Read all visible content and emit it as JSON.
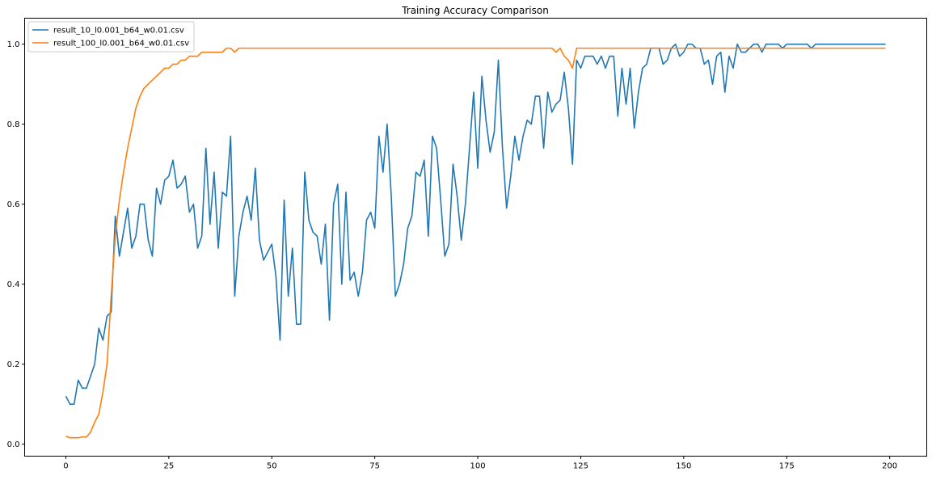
{
  "chart_data": {
    "type": "line",
    "title": "Training Accuracy Comparison",
    "xlabel": "",
    "ylabel": "",
    "xlim": [
      -10,
      209
    ],
    "ylim": [
      -0.03,
      1.065
    ],
    "grid": false,
    "legend_position": "top-left",
    "x_ticks": [
      0,
      25,
      50,
      75,
      100,
      125,
      150,
      175,
      200
    ],
    "x_tick_labels": [
      "0",
      "25",
      "50",
      "75",
      "100",
      "125",
      "150",
      "175",
      "200"
    ],
    "y_ticks": [
      0.0,
      0.2,
      0.4,
      0.6,
      0.8,
      1.0
    ],
    "y_tick_labels": [
      "0.0",
      "0.2",
      "0.4",
      "0.6",
      "0.8",
      "1.0"
    ],
    "series": [
      {
        "name": "result_10_l0.001_b64_w0.01.csv",
        "color": "#1f77b4",
        "x": [
          0,
          1,
          2,
          3,
          4,
          5,
          6,
          7,
          8,
          9,
          10,
          11,
          12,
          13,
          14,
          15,
          16,
          17,
          18,
          19,
          20,
          21,
          22,
          23,
          24,
          25,
          26,
          27,
          28,
          29,
          30,
          31,
          32,
          33,
          34,
          35,
          36,
          37,
          38,
          39,
          40,
          41,
          42,
          43,
          44,
          45,
          46,
          47,
          48,
          49,
          50,
          51,
          52,
          53,
          54,
          55,
          56,
          57,
          58,
          59,
          60,
          61,
          62,
          63,
          64,
          65,
          66,
          67,
          68,
          69,
          70,
          71,
          72,
          73,
          74,
          75,
          76,
          77,
          78,
          79,
          80,
          81,
          82,
          83,
          84,
          85,
          86,
          87,
          88,
          89,
          90,
          91,
          92,
          93,
          94,
          95,
          96,
          97,
          98,
          99,
          100,
          101,
          102,
          103,
          104,
          105,
          106,
          107,
          108,
          109,
          110,
          111,
          112,
          113,
          114,
          115,
          116,
          117,
          118,
          119,
          120,
          121,
          122,
          123,
          124,
          125,
          126,
          127,
          128,
          129,
          130,
          131,
          132,
          133,
          134,
          135,
          136,
          137,
          138,
          139,
          140,
          141,
          142,
          143,
          144,
          145,
          146,
          147,
          148,
          149,
          150,
          151,
          152,
          153,
          154,
          155,
          156,
          157,
          158,
          159,
          160,
          161,
          162,
          163,
          164,
          165,
          166,
          167,
          168,
          169,
          170,
          171,
          172,
          173,
          174,
          175,
          176,
          177,
          178,
          179,
          180,
          181,
          182,
          183,
          184,
          185,
          186,
          187,
          188,
          189,
          190,
          191,
          192,
          193,
          194,
          195,
          196,
          197,
          198,
          199
        ],
        "values": [
          0.12,
          0.1,
          0.1,
          0.16,
          0.14,
          0.14,
          0.17,
          0.2,
          0.29,
          0.26,
          0.32,
          0.33,
          0.57,
          0.47,
          0.53,
          0.59,
          0.49,
          0.52,
          0.6,
          0.6,
          0.51,
          0.47,
          0.64,
          0.6,
          0.66,
          0.67,
          0.71,
          0.64,
          0.65,
          0.67,
          0.58,
          0.6,
          0.49,
          0.52,
          0.74,
          0.55,
          0.68,
          0.49,
          0.63,
          0.62,
          0.77,
          0.37,
          0.52,
          0.58,
          0.62,
          0.56,
          0.69,
          0.51,
          0.46,
          0.48,
          0.5,
          0.42,
          0.26,
          0.61,
          0.37,
          0.49,
          0.3,
          0.3,
          0.68,
          0.56,
          0.53,
          0.52,
          0.45,
          0.55,
          0.31,
          0.6,
          0.65,
          0.4,
          0.63,
          0.41,
          0.43,
          0.37,
          0.43,
          0.56,
          0.58,
          0.54,
          0.77,
          0.68,
          0.8,
          0.62,
          0.37,
          0.4,
          0.45,
          0.54,
          0.57,
          0.68,
          0.67,
          0.71,
          0.52,
          0.77,
          0.74,
          0.61,
          0.47,
          0.5,
          0.7,
          0.62,
          0.51,
          0.6,
          0.74,
          0.88,
          0.69,
          0.92,
          0.81,
          0.73,
          0.78,
          0.96,
          0.74,
          0.59,
          0.67,
          0.77,
          0.71,
          0.77,
          0.81,
          0.8,
          0.87,
          0.87,
          0.74,
          0.88,
          0.83,
          0.85,
          0.86,
          0.93,
          0.84,
          0.7,
          0.96,
          0.94,
          0.97,
          0.97,
          0.97,
          0.95,
          0.97,
          0.94,
          0.97,
          0.97,
          0.82,
          0.94,
          0.85,
          0.94,
          0.79,
          0.88,
          0.94,
          0.95,
          0.99,
          0.99,
          0.99,
          0.95,
          0.96,
          0.99,
          1.0,
          0.97,
          0.98,
          1.0,
          1.0,
          0.99,
          0.99,
          0.95,
          0.96,
          0.9,
          0.97,
          0.98,
          0.88,
          0.97,
          0.94,
          1.0,
          0.98,
          0.98,
          0.99,
          1.0,
          1.0,
          0.98,
          1.0,
          1.0,
          1.0,
          1.0,
          0.99,
          1.0,
          1.0,
          1.0,
          1.0,
          1.0,
          1.0,
          0.99,
          1.0,
          1.0,
          1.0,
          1.0,
          1.0,
          1.0,
          1.0,
          1.0,
          1.0,
          1.0,
          1.0,
          1.0,
          1.0,
          1.0,
          1.0,
          1.0,
          1.0,
          1.0
        ]
      },
      {
        "name": "result_100_l0.001_b64_w0.01.csv",
        "color": "#ff7f0e",
        "x": [
          0,
          1,
          2,
          3,
          4,
          5,
          6,
          7,
          8,
          9,
          10,
          11,
          12,
          13,
          14,
          15,
          16,
          17,
          18,
          19,
          20,
          21,
          22,
          23,
          24,
          25,
          26,
          27,
          28,
          29,
          30,
          31,
          32,
          33,
          34,
          35,
          36,
          37,
          38,
          39,
          40,
          41,
          42,
          43,
          44,
          45,
          46,
          47,
          48,
          49,
          50,
          51,
          52,
          53,
          54,
          55,
          56,
          57,
          58,
          59,
          60,
          61,
          62,
          63,
          64,
          65,
          66,
          67,
          68,
          69,
          70,
          71,
          72,
          73,
          74,
          75,
          76,
          77,
          78,
          79,
          80,
          81,
          82,
          83,
          84,
          85,
          86,
          87,
          88,
          89,
          90,
          91,
          92,
          93,
          94,
          95,
          96,
          97,
          98,
          99,
          100,
          101,
          102,
          103,
          104,
          105,
          106,
          107,
          108,
          109,
          110,
          111,
          112,
          113,
          114,
          115,
          116,
          117,
          118,
          119,
          120,
          121,
          122,
          123,
          124,
          125,
          126,
          127,
          128,
          129,
          130,
          131,
          132,
          133,
          134,
          135,
          136,
          137,
          138,
          139,
          140,
          141,
          142,
          143,
          144,
          145,
          146,
          147,
          148,
          149,
          150,
          151,
          152,
          153,
          154,
          155,
          156,
          157,
          158,
          159,
          160,
          161,
          162,
          163,
          164,
          165,
          166,
          167,
          168,
          169,
          170,
          171,
          172,
          173,
          174,
          175,
          176,
          177,
          178,
          179,
          180,
          181,
          182,
          183,
          184,
          185,
          186,
          187,
          188,
          189,
          190,
          191,
          192,
          193,
          194,
          195,
          196,
          197,
          198,
          199
        ],
        "values": [
          0.02,
          0.016,
          0.016,
          0.016,
          0.018,
          0.018,
          0.03,
          0.055,
          0.075,
          0.13,
          0.2,
          0.37,
          0.52,
          0.61,
          0.68,
          0.74,
          0.79,
          0.84,
          0.87,
          0.89,
          0.9,
          0.91,
          0.92,
          0.93,
          0.94,
          0.94,
          0.95,
          0.95,
          0.96,
          0.96,
          0.97,
          0.97,
          0.97,
          0.98,
          0.98,
          0.98,
          0.98,
          0.98,
          0.98,
          0.99,
          0.99,
          0.98,
          0.99,
          0.99,
          0.99,
          0.99,
          0.99,
          0.99,
          0.99,
          0.99,
          0.99,
          0.99,
          0.99,
          0.99,
          0.99,
          0.99,
          0.99,
          0.99,
          0.99,
          0.99,
          0.99,
          0.99,
          0.99,
          0.99,
          0.99,
          0.99,
          0.99,
          0.99,
          0.99,
          0.99,
          0.99,
          0.99,
          0.99,
          0.99,
          0.99,
          0.99,
          0.99,
          0.99,
          0.99,
          0.99,
          0.99,
          0.99,
          0.99,
          0.99,
          0.99,
          0.99,
          0.99,
          0.99,
          0.99,
          0.99,
          0.99,
          0.99,
          0.99,
          0.99,
          0.99,
          0.99,
          0.99,
          0.99,
          0.99,
          0.99,
          0.99,
          0.99,
          0.99,
          0.99,
          0.99,
          0.99,
          0.99,
          0.99,
          0.99,
          0.99,
          0.99,
          0.99,
          0.99,
          0.99,
          0.99,
          0.99,
          0.99,
          0.99,
          0.99,
          0.98,
          0.99,
          0.97,
          0.96,
          0.94,
          0.99,
          0.99,
          0.99,
          0.99,
          0.99,
          0.99,
          0.99,
          0.99,
          0.99,
          0.99,
          0.99,
          0.99,
          0.99,
          0.99,
          0.99,
          0.99,
          0.99,
          0.99,
          0.99,
          0.99,
          0.99,
          0.99,
          0.99,
          0.99,
          0.99,
          0.99,
          0.99,
          0.99,
          0.99,
          0.99,
          0.99,
          0.99,
          0.99,
          0.99,
          0.99,
          0.99,
          0.99,
          0.99,
          0.99,
          0.99,
          0.99,
          0.99,
          0.99,
          0.99,
          0.99,
          0.99,
          0.99,
          0.99,
          0.99,
          0.99,
          0.99,
          0.99,
          0.99,
          0.99,
          0.99,
          0.99,
          0.99,
          0.99,
          0.99,
          0.99,
          0.99,
          0.99,
          0.99,
          0.99,
          0.99,
          0.99,
          0.99,
          0.99,
          0.99,
          0.99,
          0.99,
          0.99,
          0.99,
          0.99,
          0.99,
          0.99
        ]
      }
    ]
  }
}
